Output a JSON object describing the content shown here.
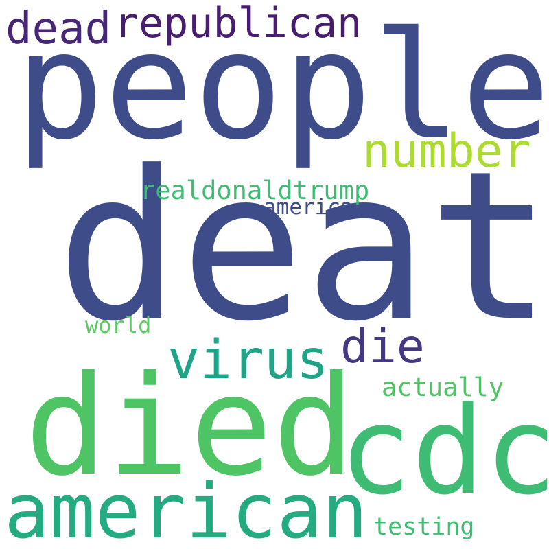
{
  "words": {
    "death": {
      "text": "death",
      "color": "#3e4c8a"
    },
    "people": {
      "text": "people",
      "color": "#3e4c8a"
    },
    "died": {
      "text": "died",
      "color": "#4fc465"
    },
    "cdc": {
      "text": "cdc",
      "color": "#3fbc73"
    },
    "american": {
      "text": "american",
      "color": "#25ab82"
    },
    "virus": {
      "text": "virus",
      "color": "#20a386"
    },
    "number": {
      "text": "number",
      "color": "#addc30"
    },
    "republican": {
      "text": "republican",
      "color": "#481d6f"
    },
    "dead": {
      "text": "dead",
      "color": "#482677"
    },
    "die": {
      "text": "die",
      "color": "#453781"
    },
    "realdonaldtrump": {
      "text": "realdonaldtrump",
      "color": "#3fbc73"
    },
    "america": {
      "text": "america",
      "color": "#3e4c8a"
    },
    "world": {
      "text": "world",
      "color": "#5ec962"
    },
    "actually": {
      "text": "actually",
      "color": "#4fc465"
    },
    "testing": {
      "text": "testing",
      "color": "#3fbc73"
    }
  }
}
